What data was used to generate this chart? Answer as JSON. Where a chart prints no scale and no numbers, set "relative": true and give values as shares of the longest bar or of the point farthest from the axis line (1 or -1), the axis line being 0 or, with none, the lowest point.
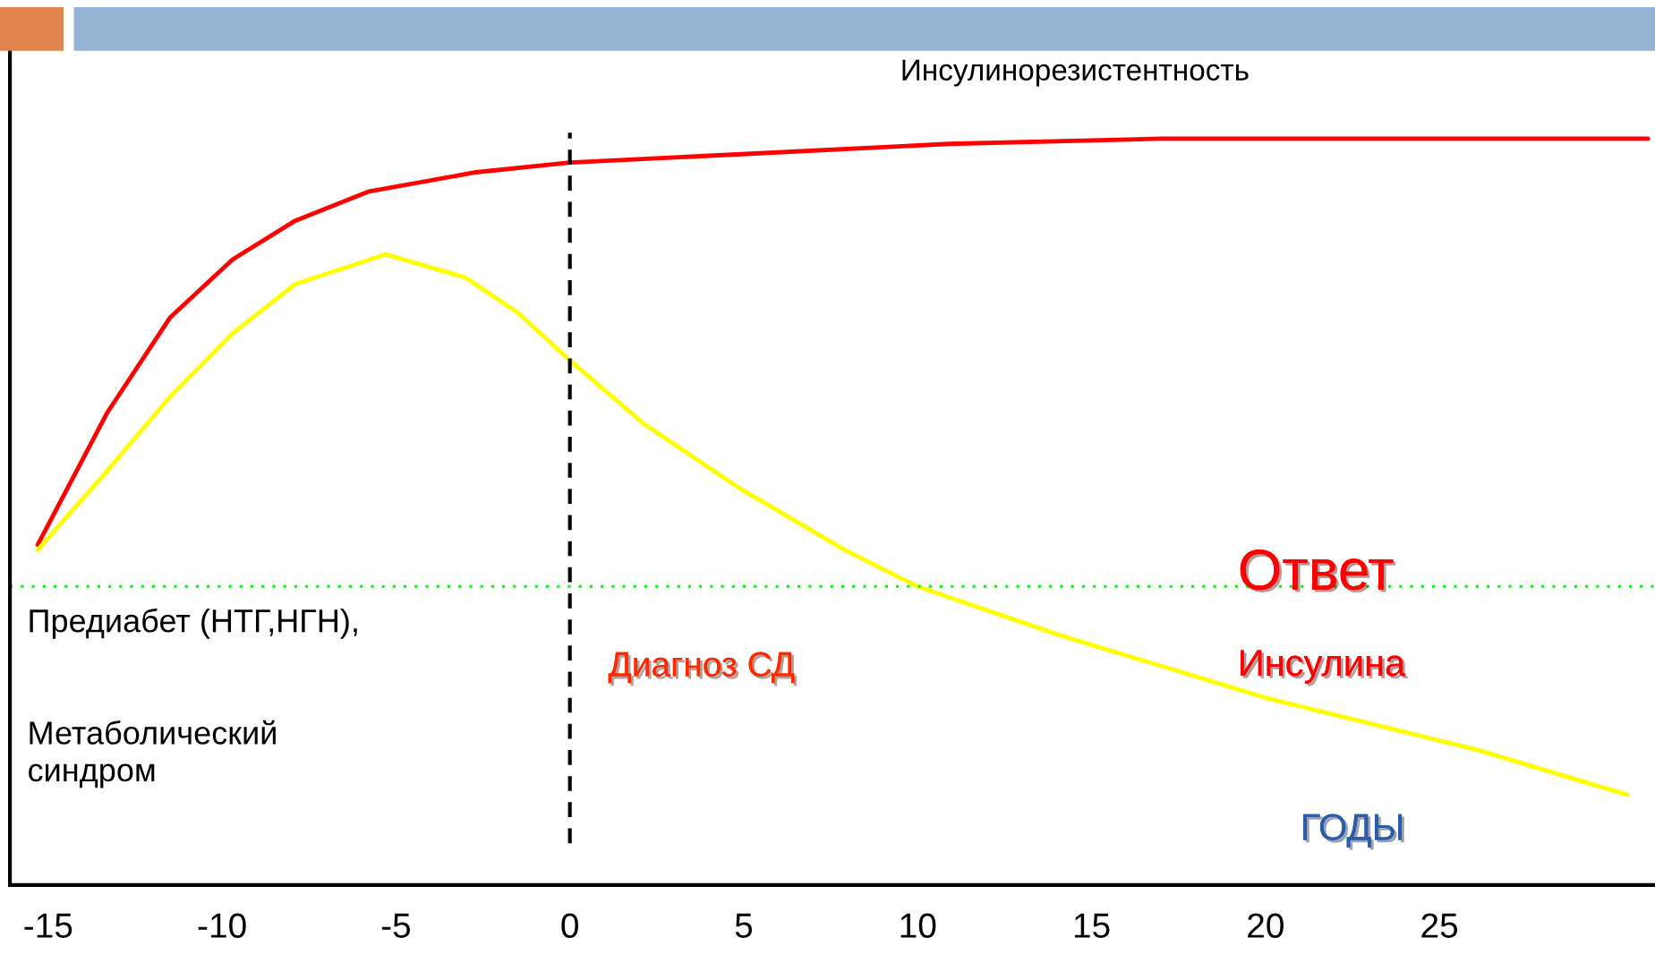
{
  "chart_data": {
    "type": "line",
    "relative": true,
    "xlabel": "ГОДЫ",
    "xlim": [
      -16.1,
      31.2
    ],
    "xticks": [
      -15,
      -10,
      -5,
      0,
      5,
      10,
      15,
      20,
      25
    ],
    "series": [
      {
        "color": "#ff0000",
        "x": [
          -15.3,
          -13.3,
          -11.5,
          -9.7,
          -7.9,
          -5.8,
          -2.7,
          0,
          4.8,
          10.9,
          17,
          23,
          31
        ],
        "values": [
          0.456,
          0.633,
          0.76,
          0.838,
          0.89,
          0.929,
          0.955,
          0.968,
          0.979,
          0.993,
          1,
          1,
          1
        ]
      },
      {
        "color": "#ffff00",
        "x": [
          -15.3,
          -13.3,
          -11.5,
          -9.7,
          -7.9,
          -5.3,
          -3.0,
          -1.5,
          0,
          2.1,
          4.8,
          7.9,
          10,
          14,
          20,
          26.1,
          30.4
        ],
        "values": [
          0.449,
          0.555,
          0.654,
          0.739,
          0.805,
          0.845,
          0.814,
          0.767,
          0.703,
          0.619,
          0.534,
          0.449,
          0.4,
          0.336,
          0.251,
          0.181,
          0.121
        ]
      }
    ],
    "ref_lines": [
      {
        "axis": "x",
        "value": 0,
        "color": "#000000",
        "line_style": "dashed"
      },
      {
        "axis": "y",
        "value": 0.4,
        "color": "#00ee00",
        "line_style": "dotted"
      }
    ],
    "annotations": [
      "Инсулинорезистентность",
      "Ответ",
      "Инсулина",
      "Предиабет (НТГ,НГН),",
      "Метаболический\nсиндром",
      "Диагноз СД"
    ],
    "grid": false,
    "legend": false,
    "marker": "none",
    "line_style": "solid"
  }
}
